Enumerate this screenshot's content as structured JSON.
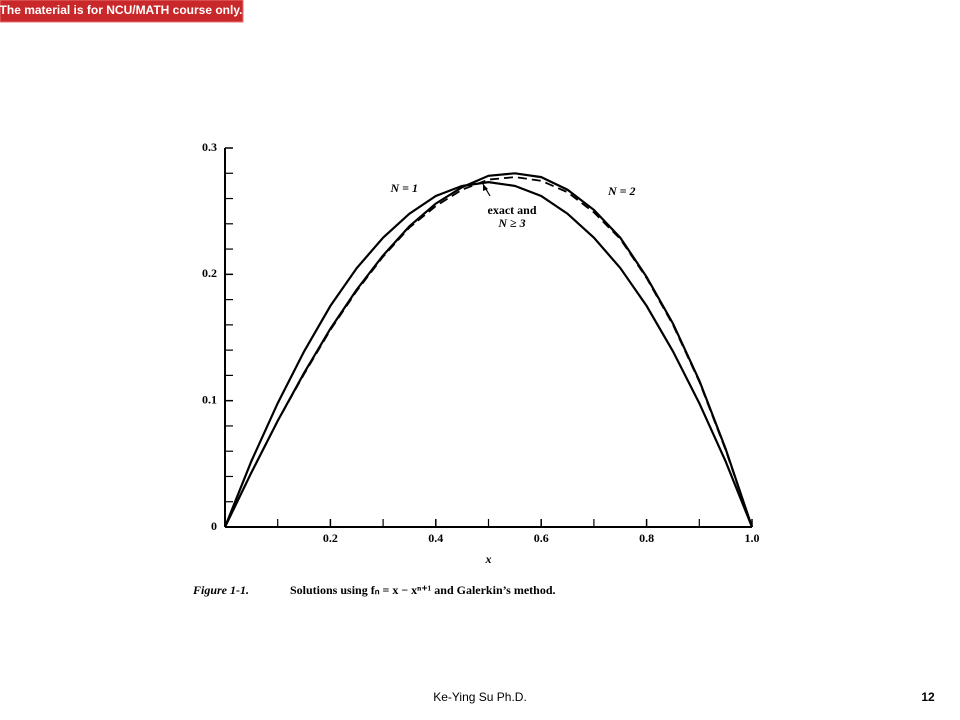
{
  "banner": "The material is for NCU/MATH course only.",
  "chart_data": {
    "type": "line",
    "x_label": "x",
    "x": [
      0,
      0.05,
      0.1,
      0.15,
      0.2,
      0.25,
      0.3,
      0.35,
      0.4,
      0.45,
      0.5,
      0.55,
      0.6,
      0.65,
      0.7,
      0.75,
      0.8,
      0.85,
      0.9,
      0.95,
      1
    ],
    "series": [
      {
        "name": "N = 1",
        "color": "#000000",
        "dashed": false,
        "values": [
          0,
          0.052,
          0.098,
          0.139,
          0.175,
          0.205,
          0.229,
          0.248,
          0.262,
          0.27,
          0.273,
          0.27,
          0.262,
          0.248,
          0.229,
          0.205,
          0.175,
          0.139,
          0.098,
          0.052,
          0
        ]
      },
      {
        "name": "N = 2",
        "color": "#000000",
        "dashed": false,
        "values": [
          0,
          0.043,
          0.084,
          0.122,
          0.157,
          0.188,
          0.215,
          0.238,
          0.256,
          0.269,
          0.278,
          0.28,
          0.277,
          0.267,
          0.251,
          0.229,
          0.198,
          0.161,
          0.116,
          0.062,
          0
        ]
      },
      {
        "name": "exact and N ≥ 3",
        "color": "#000000",
        "dashed": true,
        "values": [
          0,
          0.043,
          0.084,
          0.121,
          0.156,
          0.187,
          0.214,
          0.237,
          0.254,
          0.267,
          0.275,
          0.277,
          0.274,
          0.265,
          0.249,
          0.228,
          0.197,
          0.16,
          0.115,
          0.061,
          0
        ]
      }
    ],
    "annotations": [
      "N = 1",
      "N = 2",
      "exact and",
      "N ≥ 3"
    ],
    "xlim": [
      0,
      1
    ],
    "ylim": [
      0,
      0.3
    ],
    "xticks": [
      0.2,
      0.4,
      0.6,
      0.8,
      {
        "value": 1,
        "label": "1.0"
      }
    ],
    "x_minor_ticks": [
      0.1,
      0.3,
      0.5,
      0.7,
      0.9
    ],
    "yticks": [
      0,
      0.1,
      0.2,
      0.3
    ],
    "y_minor_ticks": [
      0.02,
      0.04,
      0.06,
      0.08,
      0.12,
      0.14,
      0.16,
      0.18,
      0.22,
      0.24,
      0.26,
      0.28
    ],
    "caption": {
      "label": "Figure 1-1.",
      "text": "Solutions using fₙ = x − xⁿ⁺¹ and Galerkin’s method."
    }
  },
  "footer": {
    "author": "Ke-Ying Su Ph.D.",
    "page": "12"
  }
}
